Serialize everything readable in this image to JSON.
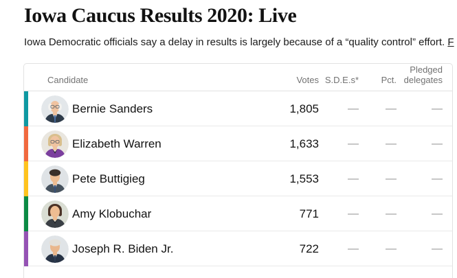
{
  "page": {
    "title": "Iowa Caucus Results 2020: Live",
    "subtitle": "Iowa Democratic officials say a delay in results is largely because of a “quality control” effort. ",
    "subtitle_link": "F"
  },
  "table": {
    "columns": {
      "candidate": "Candidate",
      "votes": "Votes",
      "sdes": "S.D.E.s*",
      "pct": "Pct.",
      "pledged_line1": "Pledged",
      "pledged_line2": "delegates"
    },
    "rows": [
      {
        "name": "Bernie Sanders",
        "votes": "1,805",
        "sdes": "—",
        "pct": "—",
        "pledged": "—",
        "color": "#0f99a2",
        "avatar": {
          "bg": "#e3e7ea",
          "skin": "#f0c3a0",
          "hair": "#f3f2ef",
          "suit": "#2e3b4a",
          "inner": "#ffffff",
          "tie": "#4a6fa5",
          "glasses": true,
          "hairstyle": "balding"
        }
      },
      {
        "name": "Elizabeth Warren",
        "votes": "1,633",
        "sdes": "—",
        "pct": "—",
        "pledged": "—",
        "color": "#f1693f",
        "avatar": {
          "bg": "#e9e6df",
          "skin": "#f0c3a0",
          "hair": "#d9bf8d",
          "suit": "#7b3f9e",
          "inner": "#2a2a2a",
          "tie": "",
          "glasses": true,
          "hairstyle": "bob"
        }
      },
      {
        "name": "Pete Buttigieg",
        "votes": "1,553",
        "sdes": "—",
        "pct": "—",
        "pledged": "—",
        "color": "#ffc31e",
        "avatar": {
          "bg": "#dfe3e6",
          "skin": "#eebd92",
          "hair": "#3a2f28",
          "suit": "#46525e",
          "inner": "#ffffff",
          "tie": "#35507c",
          "glasses": false,
          "hairstyle": "short"
        }
      },
      {
        "name": "Amy Klobuchar",
        "votes": "771",
        "sdes": "—",
        "pct": "—",
        "pledged": "—",
        "color": "#0b8a44",
        "avatar": {
          "bg": "#d9ddd3",
          "skin": "#eebd92",
          "hair": "#4a3226",
          "suit": "#3a3f45",
          "inner": "#222222",
          "tie": "",
          "glasses": false,
          "hairstyle": "bob"
        }
      },
      {
        "name": "Joseph R. Biden Jr.",
        "votes": "722",
        "sdes": "—",
        "pct": "—",
        "pledged": "—",
        "color": "#9553b4",
        "avatar": {
          "bg": "#e0e4e7",
          "skin": "#eab78c",
          "hair": "#e4e0d8",
          "suit": "#273345",
          "inner": "#ffffff",
          "tie": "#2f3e55",
          "glasses": false,
          "hairstyle": "short"
        }
      }
    ]
  }
}
